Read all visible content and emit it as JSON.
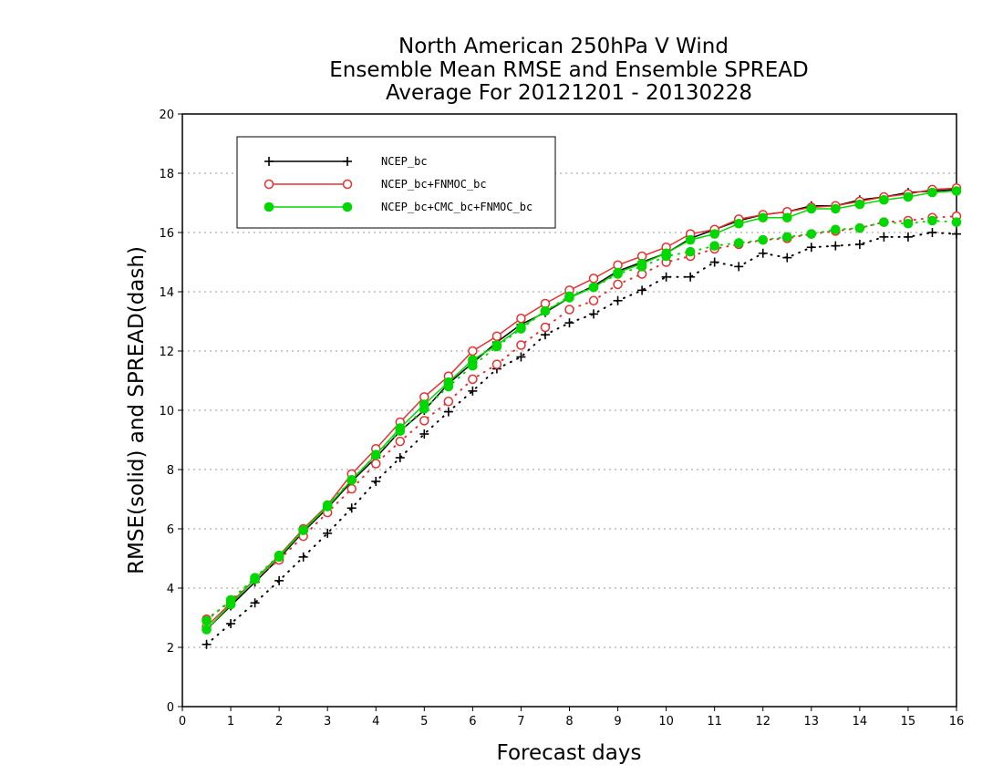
{
  "chart_data": {
    "type": "line",
    "title": [
      "North American 250hPa V Wind",
      "Ensemble Mean RMSE and Ensemble SPREAD",
      "Average For 20121201 - 20130228"
    ],
    "xlabel": "Forecast days",
    "ylabel": "RMSE(solid) and SPREAD(dash)",
    "xlim": [
      0,
      16
    ],
    "ylim": [
      0,
      20
    ],
    "xticks": [
      0,
      1,
      2,
      3,
      4,
      5,
      6,
      7,
      8,
      9,
      10,
      11,
      12,
      13,
      14,
      15,
      16
    ],
    "yticks": [
      0,
      2,
      4,
      6,
      8,
      10,
      12,
      14,
      16,
      18,
      20
    ],
    "grid": true,
    "legend_position": "top-left",
    "x": [
      0.5,
      1,
      1.5,
      2,
      2.5,
      3,
      3.5,
      4,
      4.5,
      5,
      5.5,
      6,
      6.5,
      7,
      7.5,
      8,
      8.5,
      9,
      9.5,
      10,
      10.5,
      11,
      11.5,
      12,
      12.5,
      13,
      13.5,
      14,
      14.5,
      15,
      15.5,
      16
    ],
    "series": [
      {
        "name": "NCEP_bc",
        "color": "#000000",
        "marker": "plus",
        "rmse": [
          2.6,
          3.4,
          4.2,
          5.0,
          5.9,
          6.7,
          7.6,
          8.4,
          9.3,
          10.0,
          10.9,
          11.6,
          12.3,
          12.9,
          13.3,
          13.8,
          14.2,
          14.7,
          15.0,
          15.3,
          15.8,
          16.1,
          16.4,
          16.6,
          16.7,
          16.9,
          16.9,
          17.1,
          17.2,
          17.35,
          17.4,
          17.45
        ],
        "spread": [
          2.1,
          2.8,
          3.5,
          4.25,
          5.05,
          5.85,
          6.7,
          7.6,
          8.4,
          9.2,
          9.95,
          10.65,
          11.4,
          11.8,
          12.55,
          12.95,
          13.25,
          13.7,
          14.05,
          14.5,
          14.5,
          15.0,
          14.85,
          15.3,
          15.15,
          15.5,
          15.55,
          15.6,
          15.85,
          15.85,
          16.0,
          15.95
        ]
      },
      {
        "name": "NCEP_bc+FNMOC_bc",
        "color": "#e83030",
        "marker": "open-circle",
        "rmse": [
          2.7,
          3.5,
          4.3,
          5.1,
          6.0,
          6.8,
          7.85,
          8.7,
          9.6,
          10.45,
          11.15,
          12.0,
          12.5,
          13.1,
          13.6,
          14.05,
          14.45,
          14.9,
          15.2,
          15.5,
          15.95,
          16.1,
          16.45,
          16.6,
          16.7,
          16.85,
          16.9,
          17.05,
          17.2,
          17.3,
          17.45,
          17.5
        ],
        "spread": [
          2.95,
          3.55,
          4.3,
          4.95,
          5.75,
          6.55,
          7.35,
          8.2,
          8.95,
          9.65,
          10.3,
          11.05,
          11.55,
          12.2,
          12.8,
          13.4,
          13.7,
          14.25,
          14.6,
          15.0,
          15.2,
          15.45,
          15.6,
          15.75,
          15.8,
          15.95,
          16.05,
          16.15,
          16.35,
          16.4,
          16.5,
          16.55
        ]
      },
      {
        "name": "NCEP_bc+CMC_bc+FNMOC_bc",
        "color": "#00d800",
        "marker": "filled-circle",
        "rmse": [
          2.6,
          3.45,
          4.3,
          5.05,
          5.95,
          6.75,
          7.65,
          8.5,
          9.4,
          10.2,
          10.95,
          11.7,
          12.2,
          12.8,
          13.35,
          13.8,
          14.15,
          14.65,
          14.95,
          15.3,
          15.75,
          15.95,
          16.3,
          16.5,
          16.5,
          16.8,
          16.8,
          16.95,
          17.1,
          17.2,
          17.35,
          17.4
        ],
        "spread": [
          2.9,
          3.6,
          4.35,
          5.1,
          5.95,
          6.8,
          7.65,
          8.5,
          9.3,
          10.05,
          10.8,
          11.5,
          12.15,
          12.75,
          13.35,
          13.85,
          14.15,
          14.6,
          14.85,
          15.2,
          15.35,
          15.55,
          15.65,
          15.75,
          15.85,
          15.95,
          16.1,
          16.15,
          16.35,
          16.3,
          16.4,
          16.35
        ]
      }
    ]
  }
}
